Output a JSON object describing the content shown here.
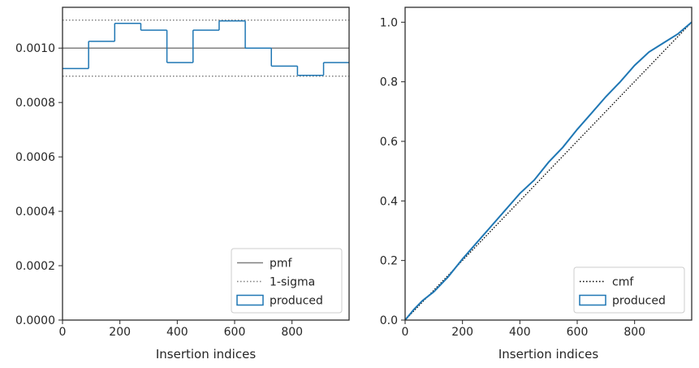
{
  "chart_data": [
    {
      "type": "step",
      "xlabel": "Insertion indices",
      "xlim": [
        0,
        999
      ],
      "ylim": [
        0,
        0.00115
      ],
      "xticks": [
        0,
        200,
        400,
        600,
        800
      ],
      "xtick_labels": [
        "0",
        "200",
        "400",
        "600",
        "800"
      ],
      "yticks": [
        0,
        0.0002,
        0.0004,
        0.0006,
        0.0008,
        0.001
      ],
      "ytick_labels": [
        "0.0000",
        "0.0002",
        "0.0004",
        "0.0006",
        "0.0008",
        "0.0010"
      ],
      "pmf": 0.001,
      "sigma_band": [
        0.000897,
        0.001103
      ],
      "produced": {
        "bin_edges": [
          0,
          91,
          182,
          273,
          364,
          455,
          546,
          637,
          728,
          819,
          910,
          999
        ],
        "values": [
          0.000925,
          0.001025,
          0.001091,
          0.001066,
          0.000947,
          0.001066,
          0.0011,
          0.001,
          0.000934,
          0.0009,
          0.000947
        ]
      },
      "legend": {
        "position": "lower-right",
        "entries": [
          {
            "label": "pmf",
            "style": "solid",
            "color": "#808080"
          },
          {
            "label": "1-sigma",
            "style": "dotted",
            "color": "#808080"
          },
          {
            "label": "produced",
            "style": "box",
            "color": "#1f77b4"
          }
        ]
      },
      "grid": false
    },
    {
      "type": "line",
      "xlabel": "Insertion indices",
      "xlim": [
        0,
        999
      ],
      "ylim": [
        0,
        1.05
      ],
      "xticks": [
        0,
        200,
        400,
        600,
        800
      ],
      "xtick_labels": [
        "0",
        "200",
        "400",
        "600",
        "800"
      ],
      "yticks": [
        0,
        0.2,
        0.4,
        0.6,
        0.8,
        1.0
      ],
      "ytick_labels": [
        "0.0",
        "0.2",
        "0.4",
        "0.6",
        "0.8",
        "1.0"
      ],
      "cmf": {
        "x": [
          0,
          999
        ],
        "y": [
          0,
          1.0
        ]
      },
      "produced": {
        "x": [
          0,
          30,
          60,
          100,
          150,
          200,
          250,
          300,
          350,
          400,
          450,
          500,
          550,
          600,
          650,
          700,
          750,
          800,
          850,
          900,
          950,
          999
        ],
        "y": [
          0,
          0.035,
          0.065,
          0.095,
          0.145,
          0.205,
          0.26,
          0.315,
          0.37,
          0.425,
          0.47,
          0.53,
          0.58,
          0.64,
          0.695,
          0.75,
          0.8,
          0.855,
          0.9,
          0.93,
          0.96,
          1.0
        ]
      },
      "legend": {
        "position": "lower-right",
        "entries": [
          {
            "label": "cmf",
            "style": "dotted",
            "color": "#000000"
          },
          {
            "label": "produced",
            "style": "box",
            "color": "#1f77b4"
          }
        ]
      },
      "grid": false
    }
  ],
  "colors": {
    "produced": "#1f77b4",
    "reference": "#808080",
    "cmf": "#000000",
    "axis": "#262626"
  }
}
